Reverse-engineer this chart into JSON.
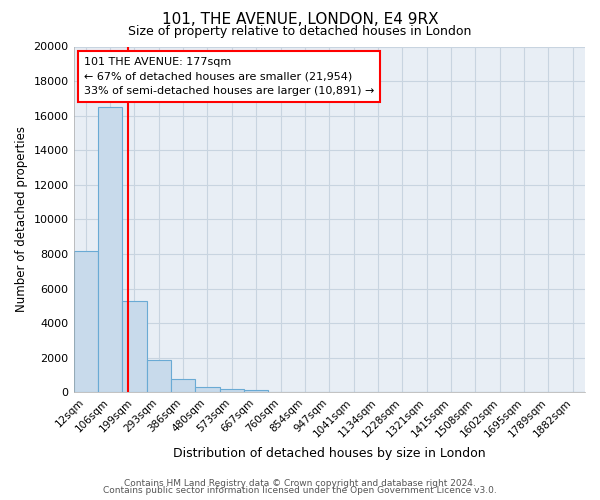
{
  "title": "101, THE AVENUE, LONDON, E4 9RX",
  "subtitle": "Size of property relative to detached houses in London",
  "xlabel": "Distribution of detached houses by size in London",
  "ylabel": "Number of detached properties",
  "categories": [
    "12sqm",
    "106sqm",
    "199sqm",
    "293sqm",
    "386sqm",
    "480sqm",
    "573sqm",
    "667sqm",
    "760sqm",
    "854sqm",
    "947sqm",
    "1041sqm",
    "1134sqm",
    "1228sqm",
    "1321sqm",
    "1415sqm",
    "1508sqm",
    "1602sqm",
    "1695sqm",
    "1789sqm",
    "1882sqm"
  ],
  "bar_values": [
    8200,
    16500,
    5300,
    1850,
    750,
    330,
    200,
    110,
    0,
    0,
    0,
    0,
    0,
    0,
    0,
    0,
    0,
    0,
    0,
    0,
    0
  ],
  "bar_color": "#c8daeb",
  "bar_edge_color": "#6aaad4",
  "red_line_x": 1.75,
  "annotation_box_text": "101 THE AVENUE: 177sqm\n← 67% of detached houses are smaller (21,954)\n33% of semi-detached houses are larger (10,891) →",
  "ylim": [
    0,
    20000
  ],
  "yticks": [
    0,
    2000,
    4000,
    6000,
    8000,
    10000,
    12000,
    14000,
    16000,
    18000,
    20000
  ],
  "grid_color": "#c8d4e0",
  "background_color": "#ffffff",
  "plot_bg_color": "#e8eef5",
  "footer_line1": "Contains HM Land Registry data © Crown copyright and database right 2024.",
  "footer_line2": "Contains public sector information licensed under the Open Government Licence v3.0."
}
